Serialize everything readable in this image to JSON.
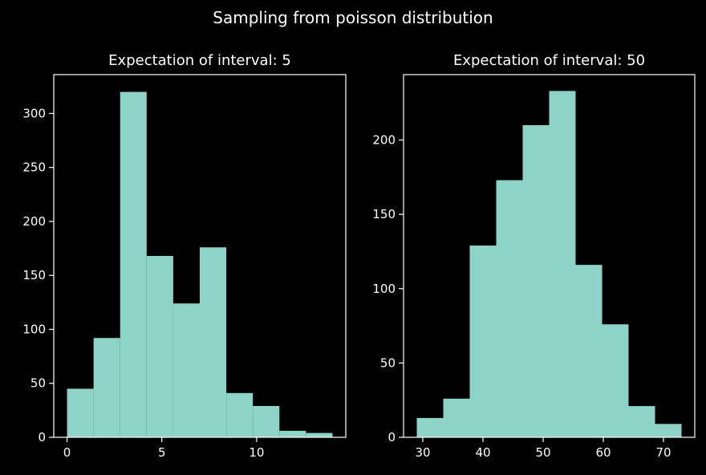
{
  "figure": {
    "suptitle": "Sampling from poisson distribution",
    "background": "#000000",
    "foreground": "#ffffff",
    "bar_color": "#8dd3c7"
  },
  "chart_data": [
    {
      "type": "histogram",
      "title": "Expectation of interval: 5",
      "xlabel": "",
      "ylabel": "",
      "xlim": [
        -0.7,
        14.7
      ],
      "ylim": [
        0,
        336
      ],
      "xticks": [
        0,
        5,
        10
      ],
      "yticks": [
        0,
        50,
        100,
        150,
        200,
        250,
        300
      ],
      "bin_edges": [
        0.0,
        1.4,
        2.8,
        4.2,
        5.6,
        7.0,
        8.4,
        9.8,
        11.2,
        12.6,
        14.0
      ],
      "counts": [
        45,
        92,
        320,
        168,
        124,
        176,
        41,
        29,
        6,
        4
      ],
      "grid": false
    },
    {
      "type": "histogram",
      "title": "Expectation of interval: 50",
      "xlabel": "",
      "ylabel": "",
      "xlim": [
        26.8,
        75.2
      ],
      "ylim": [
        0,
        244
      ],
      "xticks": [
        30,
        40,
        50,
        60,
        70
      ],
      "yticks": [
        0,
        50,
        100,
        150,
        200
      ],
      "bin_edges": [
        29.0,
        33.4,
        37.8,
        42.2,
        46.6,
        51.0,
        55.4,
        59.8,
        64.2,
        68.6,
        73.0
      ],
      "counts": [
        13,
        26,
        129,
        173,
        210,
        233,
        116,
        76,
        21,
        9
      ],
      "grid": false
    }
  ]
}
